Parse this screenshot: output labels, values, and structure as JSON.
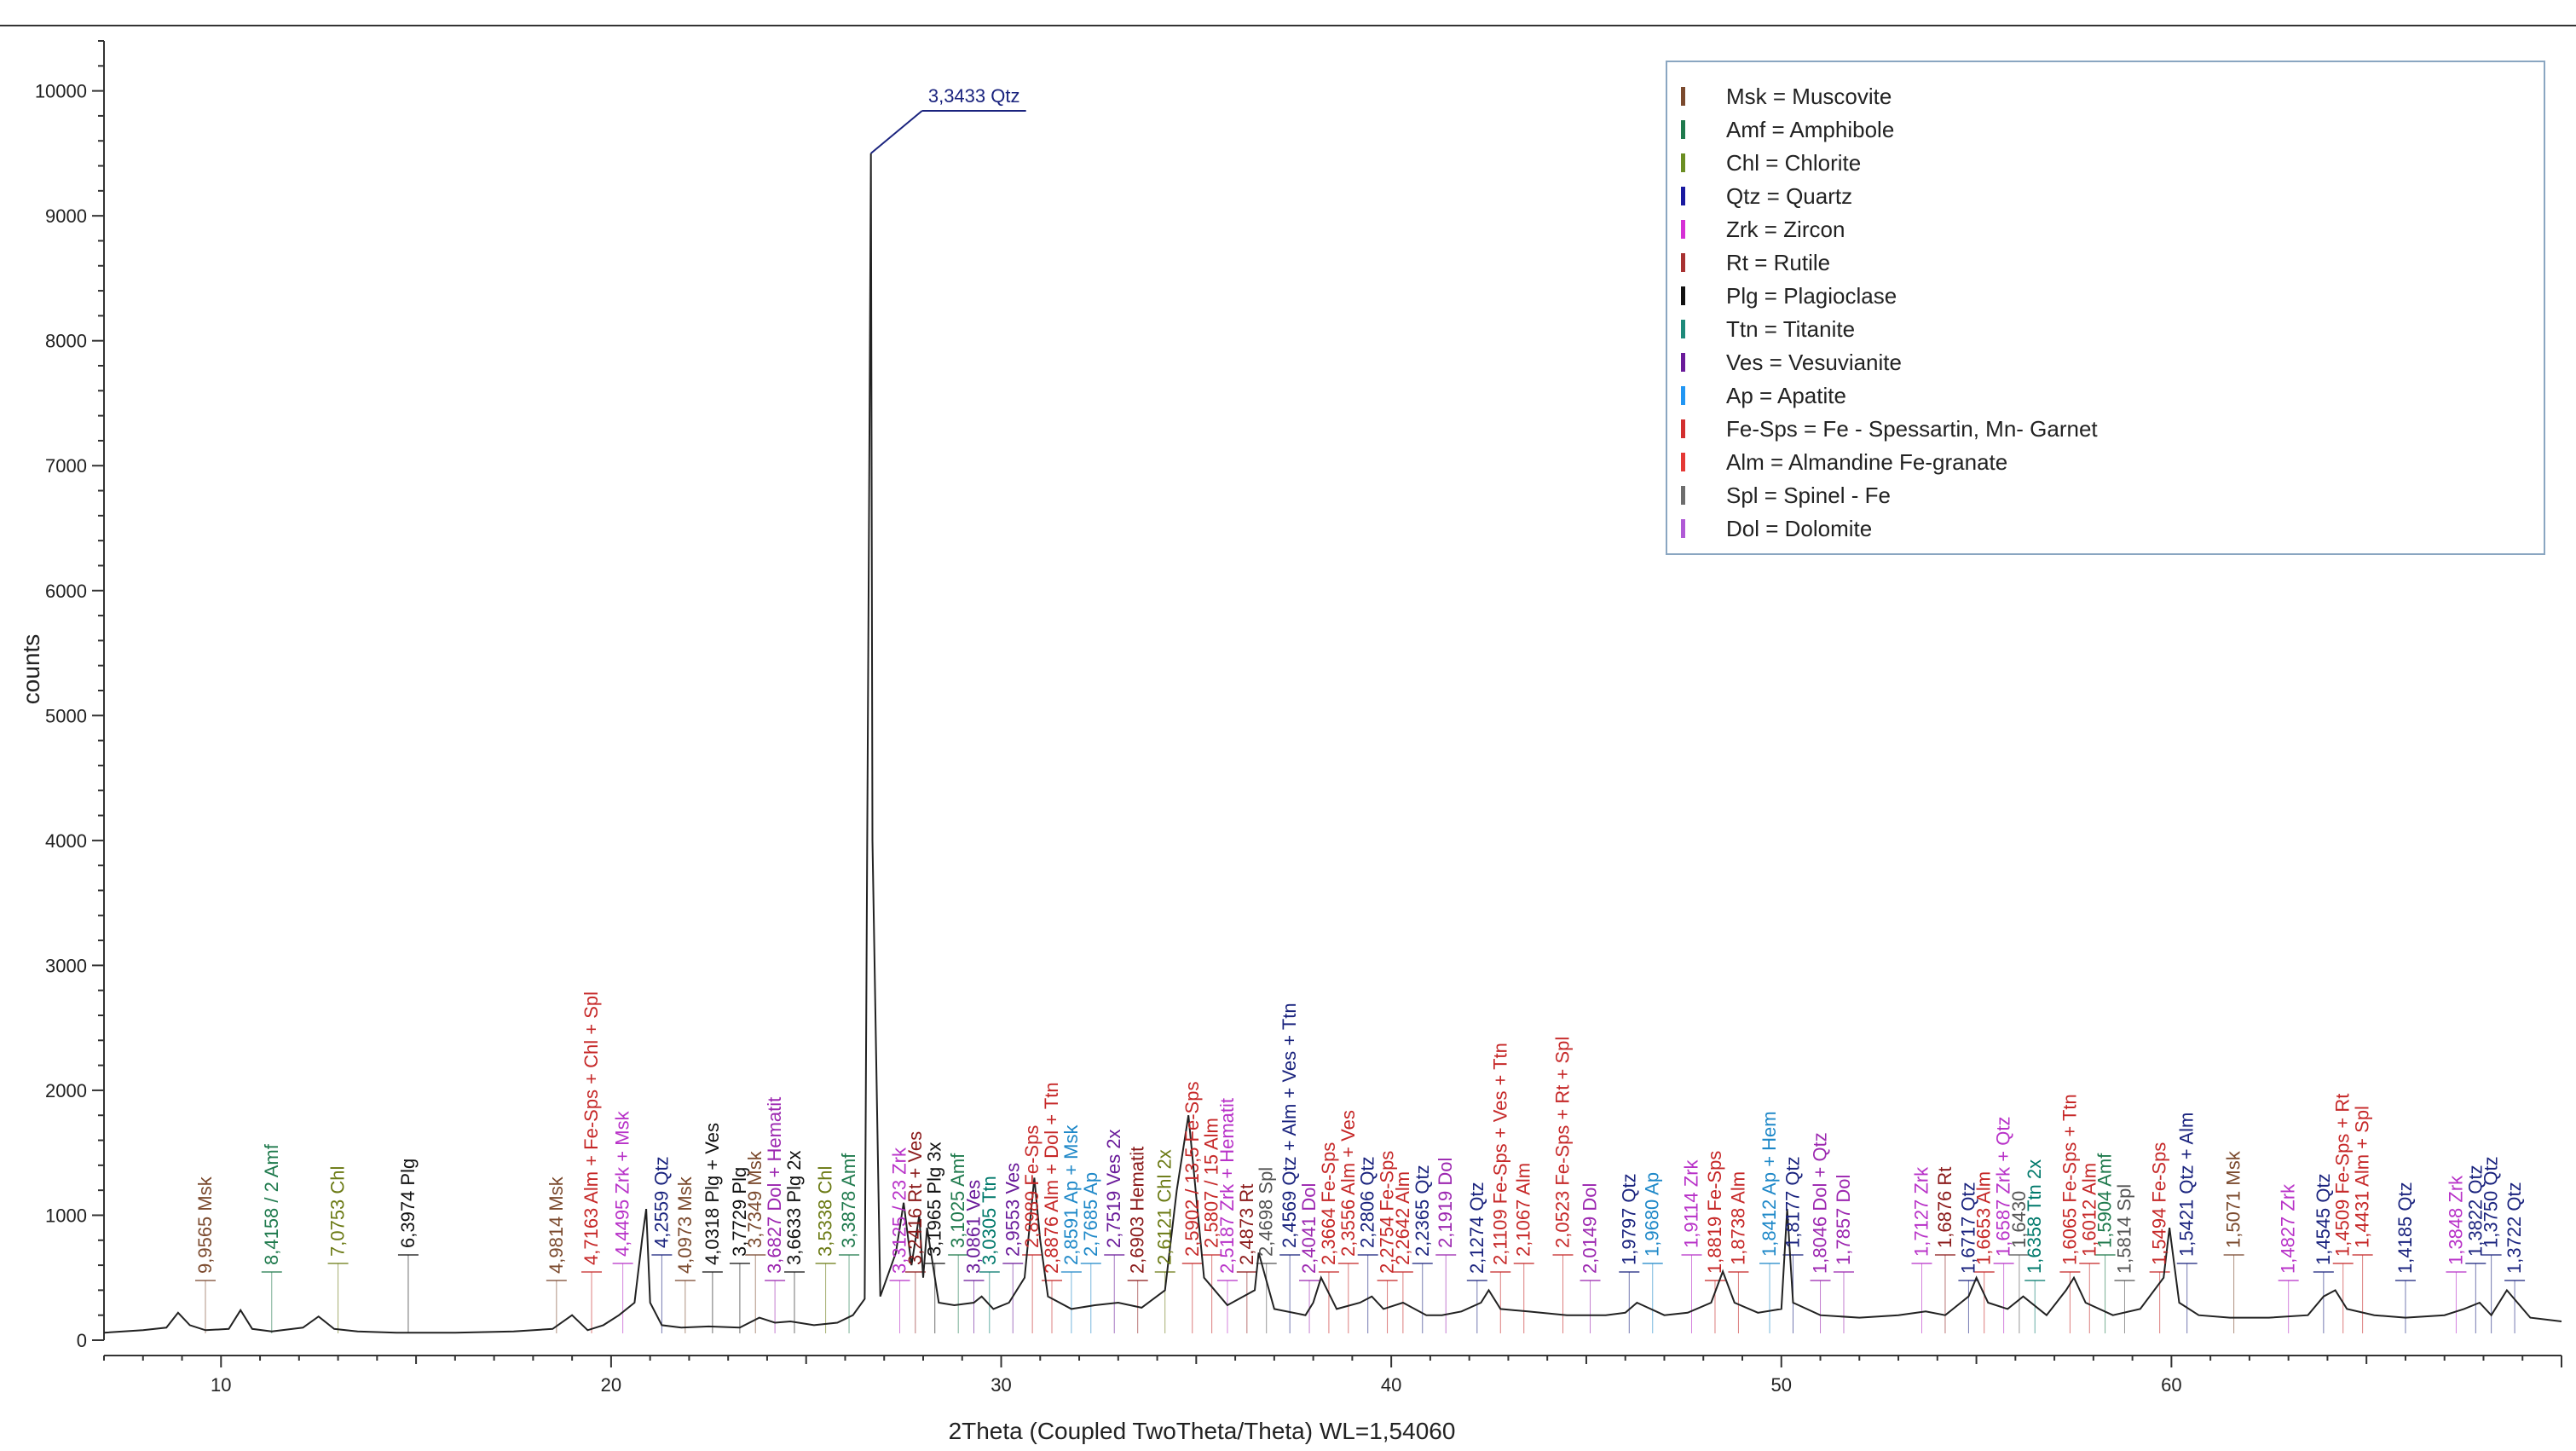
{
  "chart_data": {
    "type": "line",
    "title": "",
    "xlabel": "2Theta (Coupled TwoTheta/Theta) WL=1,54060",
    "ylabel": "counts",
    "xlim": [
      7,
      70
    ],
    "ylim": [
      0,
      10400
    ],
    "x_ticks": [
      10,
      20,
      30,
      40,
      50,
      60
    ],
    "y_ticks": [
      0,
      1000,
      2000,
      3000,
      4000,
      5000,
      6000,
      7000,
      8000,
      9000,
      10000
    ],
    "series": [
      {
        "name": "counts",
        "color": "#222222",
        "x": [
          7.0,
          8.0,
          8.6,
          8.9,
          9.2,
          9.6,
          10.2,
          10.5,
          10.8,
          11.3,
          12.1,
          12.5,
          12.9,
          13.5,
          14.5,
          16.0,
          17.5,
          18.5,
          19.0,
          19.4,
          19.8,
          20.2,
          20.6,
          20.8,
          20.9,
          21.0,
          21.3,
          21.8,
          22.5,
          23.3,
          23.8,
          24.2,
          24.6,
          25.2,
          25.8,
          26.2,
          26.5,
          26.62,
          26.66,
          26.7,
          26.9,
          27.3,
          27.5,
          27.7,
          27.9,
          28.0,
          28.1,
          28.4,
          28.8,
          29.3,
          29.5,
          29.8,
          30.2,
          30.6,
          30.85,
          31.0,
          31.2,
          31.8,
          32.4,
          33.0,
          33.6,
          34.2,
          34.5,
          34.8,
          35.2,
          35.8,
          36.5,
          36.6,
          37.0,
          37.8,
          38.0,
          38.2,
          38.6,
          39.2,
          39.5,
          39.8,
          40.3,
          40.9,
          41.3,
          41.8,
          42.3,
          42.5,
          42.8,
          43.5,
          44.5,
          45.5,
          46.0,
          46.3,
          47.0,
          47.6,
          48.2,
          48.5,
          48.8,
          49.4,
          50.0,
          50.15,
          50.3,
          51.0,
          52.0,
          53.0,
          53.7,
          54.2,
          54.8,
          55.0,
          55.3,
          55.8,
          56.2,
          56.8,
          57.3,
          57.5,
          57.8,
          58.5,
          59.2,
          59.8,
          59.95,
          60.2,
          60.7,
          61.5,
          62.5,
          63.5,
          63.9,
          64.2,
          64.5,
          65.2,
          66.0,
          67.0,
          67.5,
          67.9,
          68.2,
          68.6,
          69.2,
          70.0
        ],
        "y": [
          60,
          80,
          100,
          220,
          120,
          80,
          90,
          240,
          90,
          70,
          100,
          190,
          90,
          70,
          60,
          60,
          70,
          90,
          200,
          80,
          120,
          200,
          300,
          820,
          1050,
          300,
          120,
          100,
          110,
          100,
          180,
          140,
          150,
          120,
          140,
          200,
          330,
          7000,
          9500,
          4000,
          350,
          700,
          1100,
          600,
          1000,
          500,
          900,
          300,
          280,
          300,
          350,
          250,
          300,
          500,
          1300,
          800,
          350,
          250,
          280,
          300,
          260,
          400,
          1200,
          1800,
          500,
          280,
          400,
          700,
          250,
          200,
          300,
          500,
          250,
          300,
          350,
          250,
          300,
          200,
          200,
          230,
          300,
          400,
          250,
          230,
          200,
          200,
          220,
          300,
          200,
          220,
          300,
          550,
          300,
          220,
          250,
          1050,
          300,
          200,
          180,
          200,
          230,
          200,
          350,
          500,
          300,
          250,
          350,
          200,
          400,
          500,
          300,
          200,
          250,
          500,
          900,
          300,
          200,
          180,
          180,
          200,
          350,
          400,
          250,
          200,
          180,
          200,
          250,
          300,
          200,
          400,
          180,
          150
        ]
      }
    ],
    "peak_labels": [
      {
        "text": "9,9565 Msk",
        "color": "#7b4a2e",
        "x": 9.6
      },
      {
        "text": "8,4158 / 2 Amf",
        "color": "#1f7a4d",
        "x": 11.3
      },
      {
        "text": "7,0753 Chl",
        "color": "#6b7a14",
        "x": 13.0
      },
      {
        "text": "6,3974 Plg",
        "color": "#111111",
        "x": 14.8
      },
      {
        "text": "4,9814 Msk",
        "color": "#7b4a2e",
        "x": 18.6
      },
      {
        "text": "4,7163 Alm + Fe-Sps + Chl + Spl",
        "color": "#c62828",
        "x": 19.5
      },
      {
        "text": "4,4495 Zrk + Msk",
        "color": "#b832c8",
        "x": 20.3
      },
      {
        "text": "4,2559 Qtz",
        "color": "#1a237e",
        "x": 21.3
      },
      {
        "text": "4,0973 Msk",
        "color": "#7b4a2e",
        "x": 21.9
      },
      {
        "text": "4,0318 Plg + Ves",
        "color": "#111111",
        "x": 22.6
      },
      {
        "text": "3,7729 Plg",
        "color": "#111111",
        "x": 23.3
      },
      {
        "text": "3,7349 Msk",
        "color": "#7b4a2e",
        "x": 23.7
      },
      {
        "text": "3,6827 Dol + Hematit",
        "color": "#9c27b0",
        "x": 24.2
      },
      {
        "text": "3,6633 Plg 2x",
        "color": "#111111",
        "x": 24.7
      },
      {
        "text": "3,5338 Chl",
        "color": "#6b7a14",
        "x": 25.5
      },
      {
        "text": "3,3878 Amf",
        "color": "#1f7a4d",
        "x": 26.1
      },
      {
        "text": "3,3125 / 23 Zrk",
        "color": "#b832c8",
        "x": 27.4
      },
      {
        "text": "3,2416 Rt + Ves",
        "color": "#8b1a1a",
        "x": 27.8
      },
      {
        "text": "3,1965 Plg 3x",
        "color": "#111111",
        "x": 28.3
      },
      {
        "text": "3,1025 Amf",
        "color": "#1f7a4d",
        "x": 28.9
      },
      {
        "text": "3,0861 Ves",
        "color": "#6a1b9a",
        "x": 29.3
      },
      {
        "text": "3,0305 Ttn",
        "color": "#00796b",
        "x": 29.7
      },
      {
        "text": "2,9553 Ves",
        "color": "#6a1b9a",
        "x": 30.3
      },
      {
        "text": "2,8989 Fe-Sps",
        "color": "#c62828",
        "x": 30.8
      },
      {
        "text": "2,8876 Alm + Dol + Ttn",
        "color": "#c62828",
        "x": 31.3
      },
      {
        "text": "2,8591 Ap + Msk",
        "color": "#1e88c8",
        "x": 31.8
      },
      {
        "text": "2,7685 Ap",
        "color": "#1e88c8",
        "x": 32.3
      },
      {
        "text": "2,7519 Ves 2x",
        "color": "#6a1b9a",
        "x": 32.9
      },
      {
        "text": "2,6903 Hematit",
        "color": "#8b1a1a",
        "x": 33.5
      },
      {
        "text": "2,6121 Chl 2x",
        "color": "#6b7a14",
        "x": 34.2
      },
      {
        "text": "2,5902 / 13,5 Fe-Sps",
        "color": "#c62828",
        "x": 34.9
      },
      {
        "text": "2,5807 / 15 Alm",
        "color": "#c62828",
        "x": 35.4
      },
      {
        "text": "2,5187 Zrk + Hematit",
        "color": "#b832c8",
        "x": 35.8
      },
      {
        "text": "2,4873 Rt",
        "color": "#8b1a1a",
        "x": 36.3
      },
      {
        "text": "2,4698 Spl",
        "color": "#555555",
        "x": 36.8
      },
      {
        "text": "2,4569 Qtz + Alm + Ves + Ttn",
        "color": "#1a237e",
        "x": 37.4
      },
      {
        "text": "2,4041 Dol",
        "color": "#9c27b0",
        "x": 37.9
      },
      {
        "text": "2,3664 Fe-Sps",
        "color": "#c62828",
        "x": 38.4
      },
      {
        "text": "2,3556 Alm + Ves",
        "color": "#c62828",
        "x": 38.9
      },
      {
        "text": "2,2806 Qtz",
        "color": "#1a237e",
        "x": 39.4
      },
      {
        "text": "2,2754 Fe-Sps",
        "color": "#c62828",
        "x": 39.9
      },
      {
        "text": "2,2642 Alm",
        "color": "#c62828",
        "x": 40.3
      },
      {
        "text": "2,2365 Qtz",
        "color": "#1a237e",
        "x": 40.8
      },
      {
        "text": "2,1919 Dol",
        "color": "#9c27b0",
        "x": 41.4
      },
      {
        "text": "2,1274 Qtz",
        "color": "#1a237e",
        "x": 42.2
      },
      {
        "text": "2,1109 Fe-Sps + Ves + Ttn",
        "color": "#c62828",
        "x": 42.8
      },
      {
        "text": "2,1067 Alm",
        "color": "#c62828",
        "x": 43.4
      },
      {
        "text": "2,0523 Fe-Sps + Rt + Spl",
        "color": "#c62828",
        "x": 44.4
      },
      {
        "text": "2,0149 Dol",
        "color": "#9c27b0",
        "x": 45.1
      },
      {
        "text": "1,9797 Qtz",
        "color": "#1a237e",
        "x": 46.1
      },
      {
        "text": "1,9680 Ap",
        "color": "#1e88c8",
        "x": 46.7
      },
      {
        "text": "1,9114 Zrk",
        "color": "#b832c8",
        "x": 47.7
      },
      {
        "text": "1,8819 Fe-Sps",
        "color": "#c62828",
        "x": 48.3
      },
      {
        "text": "1,8738 Alm",
        "color": "#c62828",
        "x": 48.9
      },
      {
        "text": "1,8412 Ap + Hem",
        "color": "#1e88c8",
        "x": 49.7
      },
      {
        "text": "1,8177 Qtz",
        "color": "#1a237e",
        "x": 50.3
      },
      {
        "text": "1,8046 Dol + Qtz",
        "color": "#9c27b0",
        "x": 51.0
      },
      {
        "text": "1,7857 Dol",
        "color": "#9c27b0",
        "x": 51.6
      },
      {
        "text": "1,7127 Zrk",
        "color": "#b832c8",
        "x": 53.6
      },
      {
        "text": "1,6876 Rt",
        "color": "#8b1a1a",
        "x": 54.2
      },
      {
        "text": "1,6717 Qtz",
        "color": "#1a237e",
        "x": 54.8
      },
      {
        "text": "1,6653 Alm",
        "color": "#c62828",
        "x": 55.2
      },
      {
        "text": "1,6587 Zrk + Qtz",
        "color": "#b832c8",
        "x": 55.7
      },
      {
        "text": "1,6430",
        "color": "#555555",
        "x": 56.1
      },
      {
        "text": "1,6358 Ttn 2x",
        "color": "#00796b",
        "x": 56.5
      },
      {
        "text": "1,6065 Fe-Sps + Ttn",
        "color": "#c62828",
        "x": 57.4
      },
      {
        "text": "1,6012 Alm",
        "color": "#c62828",
        "x": 57.9
      },
      {
        "text": "1,5904 Amf",
        "color": "#1f7a4d",
        "x": 58.3
      },
      {
        "text": "1,5814 Spl",
        "color": "#555555",
        "x": 58.8
      },
      {
        "text": "1,5494 Fe-Sps",
        "color": "#c62828",
        "x": 59.7
      },
      {
        "text": "1,5421 Qtz + Alm",
        "color": "#1a237e",
        "x": 60.4
      },
      {
        "text": "1,5071 Msk",
        "color": "#7b4a2e",
        "x": 61.6
      },
      {
        "text": "1,4827 Zrk",
        "color": "#b832c8",
        "x": 63.0
      },
      {
        "text": "1,4545 Qtz",
        "color": "#1a237e",
        "x": 63.9
      },
      {
        "text": "1,4509 Fe-Sps + Rt",
        "color": "#c62828",
        "x": 64.4
      },
      {
        "text": "1,4431 Alm + Spl",
        "color": "#c62828",
        "x": 64.9
      },
      {
        "text": "1,4185 Qtz",
        "color": "#1a237e",
        "x": 66.0
      },
      {
        "text": "1,3848 Zrk",
        "color": "#b832c8",
        "x": 67.3
      },
      {
        "text": "1,3822 Qtz",
        "color": "#1a237e",
        "x": 67.8
      },
      {
        "text": "1,3750 Qtz",
        "color": "#1a237e",
        "x": 68.2
      },
      {
        "text": "1,3722 Qtz",
        "color": "#1a237e",
        "x": 68.8
      }
    ],
    "top_peak_label": {
      "text": "3,3433 Qtz",
      "color": "#1a237e",
      "x": 26.66
    },
    "legend_position": "top-right",
    "legend": [
      {
        "abbr": "Msk",
        "name": "Muscovite",
        "color": "#7b4a2e"
      },
      {
        "abbr": "Amf",
        "name": "Amphibole",
        "color": "#1f7a4d"
      },
      {
        "abbr": "Chl",
        "name": "Chlorite",
        "color": "#6b8e23"
      },
      {
        "abbr": "Qtz",
        "name": "Quartz",
        "color": "#1a1aa0"
      },
      {
        "abbr": "Zrk",
        "name": "Zircon",
        "color": "#d630d6"
      },
      {
        "abbr": "Rt",
        "name": "Rutile",
        "color": "#a83232"
      },
      {
        "abbr": "Plg",
        "name": "Plagioclase",
        "color": "#111111"
      },
      {
        "abbr": "Ttn",
        "name": "Titanite",
        "color": "#1e8a7a"
      },
      {
        "abbr": "Ves",
        "name": "Vesuvianite",
        "color": "#6a1b9a"
      },
      {
        "abbr": "Ap",
        "name": "Apatite",
        "color": "#2196f3"
      },
      {
        "abbr": "Fe-Sps",
        "name": "Fe - Spessartin, Mn- Garnet",
        "color": "#d32f2f"
      },
      {
        "abbr": "Alm",
        "name": "Almandine Fe-granate",
        "color": "#e53935"
      },
      {
        "abbr": "Spl",
        "name": "Spinel - Fe",
        "color": "#6d6d6d"
      },
      {
        "abbr": "Dol",
        "name": "Dolomite",
        "color": "#b05ad6"
      }
    ]
  }
}
